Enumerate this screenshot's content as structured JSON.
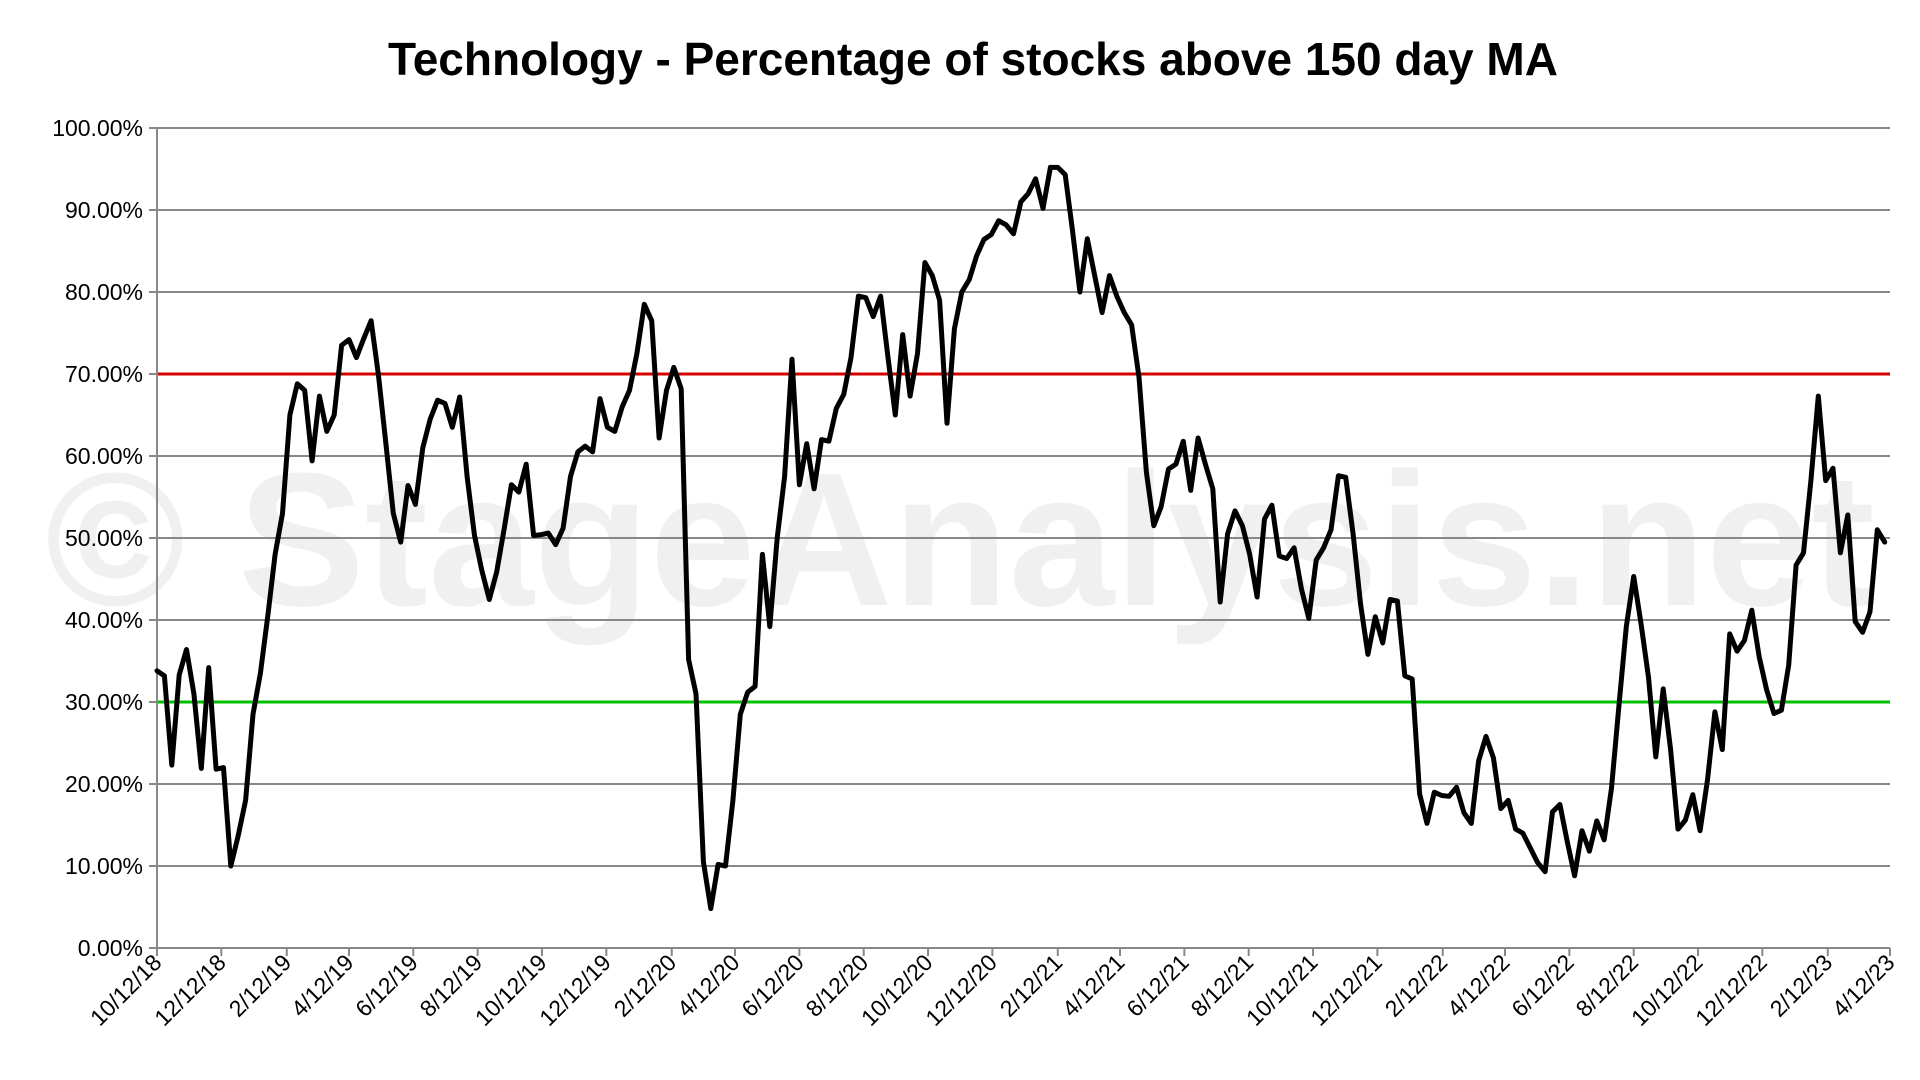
{
  "chart_data": {
    "type": "line",
    "title": "Technology - Percentage of stocks above 150 day MA",
    "xlabel": "",
    "ylabel": "",
    "watermark": "© StageAnalysis.net",
    "ylim": [
      0,
      100
    ],
    "yticks": [
      0,
      10,
      20,
      30,
      40,
      50,
      60,
      70,
      80,
      90,
      100
    ],
    "ytick_labels": [
      "0.00%",
      "10.00%",
      "20.00%",
      "30.00%",
      "40.00%",
      "50.00%",
      "60.00%",
      "70.00%",
      "80.00%",
      "90.00%",
      "100.00%"
    ],
    "xlim": [
      "2018-10-12",
      "2023-04-12"
    ],
    "xticks": [
      "2018-10-12",
      "2018-12-12",
      "2019-02-12",
      "2019-04-12",
      "2019-06-12",
      "2019-08-12",
      "2019-10-12",
      "2019-12-12",
      "2020-02-12",
      "2020-04-12",
      "2020-06-12",
      "2020-08-12",
      "2020-10-12",
      "2020-12-12",
      "2021-02-12",
      "2021-04-12",
      "2021-06-12",
      "2021-08-12",
      "2021-10-12",
      "2021-12-12",
      "2022-02-12",
      "2022-04-12",
      "2022-06-12",
      "2022-08-12",
      "2022-10-12",
      "2022-12-12",
      "2023-02-12",
      "2023-04-12"
    ],
    "xtick_labels": [
      "10/12/18",
      "12/12/18",
      "2/12/19",
      "4/12/19",
      "6/12/19",
      "8/12/19",
      "10/12/19",
      "12/12/19",
      "2/12/20",
      "4/12/20",
      "6/12/20",
      "8/12/20",
      "10/12/20",
      "12/12/20",
      "2/12/21",
      "4/12/21",
      "6/12/21",
      "8/12/21",
      "10/12/21",
      "12/12/21",
      "2/12/22",
      "4/12/22",
      "6/12/22",
      "8/12/22",
      "10/12/22",
      "12/12/22",
      "2/12/23",
      "4/12/23"
    ],
    "grid": true,
    "legend": "none",
    "reference_lines": [
      {
        "y": 70,
        "color": "#d40000"
      },
      {
        "y": 30,
        "color": "#00c000"
      }
    ],
    "line_color": "#000000",
    "grid_color": "#888888",
    "series": [
      {
        "x": [
          "2018-10-12",
          "2018-10-19",
          "2018-10-26",
          "2018-11-02",
          "2018-11-09",
          "2018-11-16",
          "2018-11-23",
          "2018-11-30",
          "2018-12-07",
          "2018-12-14",
          "2018-12-21",
          "2018-12-28",
          "2019-01-04",
          "2019-01-11",
          "2019-01-18",
          "2019-01-25",
          "2019-02-01",
          "2019-02-08",
          "2019-02-15",
          "2019-02-22",
          "2019-03-01",
          "2019-03-08",
          "2019-03-15",
          "2019-03-22",
          "2019-03-29",
          "2019-04-05",
          "2019-04-12",
          "2019-04-19",
          "2019-04-26",
          "2019-05-03",
          "2019-05-10",
          "2019-05-17",
          "2019-05-24",
          "2019-05-31",
          "2019-06-07",
          "2019-06-14",
          "2019-06-21",
          "2019-06-28",
          "2019-07-05",
          "2019-07-12",
          "2019-07-19",
          "2019-07-26",
          "2019-08-02",
          "2019-08-09",
          "2019-08-16",
          "2019-08-23",
          "2019-08-30",
          "2019-09-06",
          "2019-09-13",
          "2019-09-20",
          "2019-09-27",
          "2019-10-04",
          "2019-10-11",
          "2019-10-18",
          "2019-10-25",
          "2019-11-01",
          "2019-11-08",
          "2019-11-15",
          "2019-11-22",
          "2019-11-29",
          "2019-12-06",
          "2019-12-13",
          "2019-12-20",
          "2019-12-27",
          "2020-01-03",
          "2020-01-10",
          "2020-01-17",
          "2020-01-24",
          "2020-01-31",
          "2020-02-07",
          "2020-02-14",
          "2020-02-21",
          "2020-02-28",
          "2020-03-06",
          "2020-03-13",
          "2020-03-20",
          "2020-03-27",
          "2020-04-03",
          "2020-04-10",
          "2020-04-17",
          "2020-04-24",
          "2020-05-01",
          "2020-05-08",
          "2020-05-15",
          "2020-05-22",
          "2020-05-29",
          "2020-06-05",
          "2020-06-12",
          "2020-06-19",
          "2020-06-26",
          "2020-07-03",
          "2020-07-10",
          "2020-07-17",
          "2020-07-24",
          "2020-07-31",
          "2020-08-07",
          "2020-08-14",
          "2020-08-21",
          "2020-08-28",
          "2020-09-04",
          "2020-09-11",
          "2020-09-18",
          "2020-09-25",
          "2020-10-02",
          "2020-10-09",
          "2020-10-16",
          "2020-10-23",
          "2020-10-30",
          "2020-11-06",
          "2020-11-13",
          "2020-11-20",
          "2020-11-27",
          "2020-12-04",
          "2020-12-11",
          "2020-12-18",
          "2020-12-25",
          "2021-01-01",
          "2021-01-08",
          "2021-01-15",
          "2021-01-22",
          "2021-01-29",
          "2021-02-05",
          "2021-02-12",
          "2021-02-19",
          "2021-02-26",
          "2021-03-05",
          "2021-03-12",
          "2021-03-19",
          "2021-03-26",
          "2021-04-02",
          "2021-04-09",
          "2021-04-16",
          "2021-04-23",
          "2021-04-30",
          "2021-05-07",
          "2021-05-14",
          "2021-05-21",
          "2021-05-28",
          "2021-06-04",
          "2021-06-11",
          "2021-06-18",
          "2021-06-25",
          "2021-07-02",
          "2021-07-09",
          "2021-07-16",
          "2021-07-23",
          "2021-07-30",
          "2021-08-06",
          "2021-08-13",
          "2021-08-20",
          "2021-08-27",
          "2021-09-03",
          "2021-09-10",
          "2021-09-17",
          "2021-09-24",
          "2021-10-01",
          "2021-10-08",
          "2021-10-15",
          "2021-10-22",
          "2021-10-29",
          "2021-11-05",
          "2021-11-12",
          "2021-11-19",
          "2021-11-26",
          "2021-12-03",
          "2021-12-10",
          "2021-12-17",
          "2021-12-24",
          "2021-12-31",
          "2022-01-07",
          "2022-01-14",
          "2022-01-21",
          "2022-01-28",
          "2022-02-04",
          "2022-02-11",
          "2022-02-18",
          "2022-02-25",
          "2022-03-04",
          "2022-03-11",
          "2022-03-18",
          "2022-03-25",
          "2022-04-01",
          "2022-04-08",
          "2022-04-15",
          "2022-04-22",
          "2022-04-29",
          "2022-05-06",
          "2022-05-13",
          "2022-05-20",
          "2022-05-27",
          "2022-06-03",
          "2022-06-10",
          "2022-06-17",
          "2022-06-24",
          "2022-07-01",
          "2022-07-08",
          "2022-07-15",
          "2022-07-22",
          "2022-07-29",
          "2022-08-05",
          "2022-08-12",
          "2022-08-19",
          "2022-08-26",
          "2022-09-02",
          "2022-09-09",
          "2022-09-16",
          "2022-09-23",
          "2022-09-30",
          "2022-10-07",
          "2022-10-14",
          "2022-10-21",
          "2022-10-28",
          "2022-11-04",
          "2022-11-11",
          "2022-11-18",
          "2022-11-25",
          "2022-12-02",
          "2022-12-09",
          "2022-12-16",
          "2022-12-23",
          "2022-12-30",
          "2023-01-06",
          "2023-01-13",
          "2023-01-20",
          "2023-01-27",
          "2023-02-03",
          "2023-02-10",
          "2023-02-17",
          "2023-02-24",
          "2023-03-03",
          "2023-03-10",
          "2023-03-17",
          "2023-03-24",
          "2023-03-31",
          "2023-04-07"
        ],
        "y": [
          33.8,
          33.2,
          22.3,
          33.3,
          36.4,
          31.0,
          21.9,
          34.2,
          21.8,
          22.0,
          10.0,
          13.7,
          18.0,
          28.5,
          33.5,
          40.5,
          48.0,
          53.0,
          65.0,
          68.8,
          68.0,
          59.4,
          67.3,
          63.0,
          65.0,
          73.5,
          74.2,
          72.0,
          74.3,
          76.5,
          69.8,
          61.5,
          53.0,
          49.5,
          56.4,
          54.1,
          61.0,
          64.5,
          66.8,
          66.4,
          63.5,
          67.2,
          57.5,
          50.3,
          46.0,
          42.5,
          45.8,
          51.0,
          56.5,
          55.6,
          59.0,
          50.3,
          50.4,
          50.6,
          49.2,
          51.2,
          57.5,
          60.5,
          61.2,
          60.5,
          67.0,
          63.5,
          63.0,
          66.0,
          68.0,
          72.5,
          78.5,
          76.5,
          62.2,
          68.0,
          70.8,
          68.2,
          35.2,
          31.0,
          10.5,
          4.8,
          10.2,
          10.0,
          18.0,
          28.5,
          31.2,
          31.9,
          48.0,
          39.2,
          50.0,
          57.5,
          71.8,
          56.5,
          61.5,
          56.0,
          62.0,
          61.8,
          65.8,
          67.5,
          72.0,
          79.5,
          79.3,
          77.0,
          79.5,
          72.0,
          65.0,
          74.8,
          67.3,
          72.5,
          83.6,
          82.0,
          79.0,
          64.0,
          75.5,
          80.0,
          81.5,
          84.4,
          86.4,
          87.0,
          88.7,
          88.2,
          87.1,
          91.0,
          92.0,
          93.8,
          90.2,
          95.2,
          95.2,
          94.3,
          87.5,
          80.0,
          86.5,
          82.0,
          77.5,
          82.0,
          79.5,
          77.5,
          76.0,
          69.6,
          58.0,
          51.5,
          53.8,
          58.4,
          59.0,
          61.8,
          55.8,
          62.2,
          59.0,
          56.0,
          42.2,
          50.5,
          53.3,
          51.5,
          48.0,
          42.8,
          52.3,
          54.0,
          47.8,
          47.5,
          48.8,
          43.8,
          40.2,
          47.3,
          48.8,
          51.0,
          57.6,
          57.4,
          50.5,
          42.0,
          35.8,
          40.4,
          37.2,
          42.5,
          42.3,
          33.2,
          32.8,
          18.8,
          15.2,
          19.0,
          18.6,
          18.5,
          19.6,
          16.5,
          15.2,
          22.8,
          25.8,
          23.2,
          17.0,
          18.0,
          14.5,
          14.0,
          12.2,
          10.4,
          9.3,
          16.6,
          17.5,
          13.0,
          8.8,
          14.3,
          11.8,
          15.5,
          13.2,
          19.5,
          29.5,
          39.2,
          45.3,
          39.5,
          33.0,
          23.3,
          31.6,
          24.2,
          14.5,
          15.6,
          18.7,
          14.3,
          20.5,
          28.8,
          24.2,
          38.3,
          36.2,
          37.5,
          41.2,
          35.5,
          31.5,
          28.6,
          29.0,
          34.5,
          46.7,
          48.2,
          57.0,
          67.3,
          57.0,
          58.5,
          48.2,
          52.8,
          39.8,
          38.5,
          41.0,
          51.0,
          49.5
        ]
      }
    ]
  }
}
